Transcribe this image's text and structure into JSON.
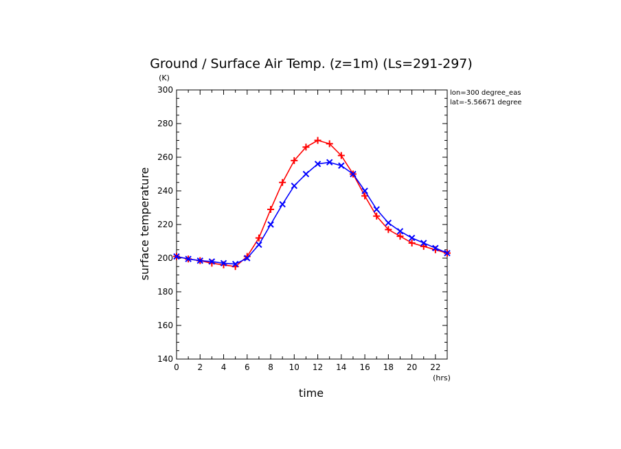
{
  "chart_data": {
    "type": "line",
    "title": "Ground / Surface Air Temp. (z=1m) (Ls=291-297)",
    "xlabel": "time",
    "ylabel": "surface temperature",
    "x_unit": "(hrs)",
    "y_unit": "(K)",
    "annotations": [
      "lon=300 degree_eas",
      "lat=-5.56671 degree"
    ],
    "xlim": [
      0,
      23
    ],
    "ylim": [
      140,
      300
    ],
    "x_ticks": [
      0,
      2,
      4,
      6,
      8,
      10,
      12,
      14,
      16,
      18,
      20,
      22
    ],
    "y_ticks": [
      140,
      160,
      180,
      200,
      220,
      240,
      260,
      280,
      300
    ],
    "x": [
      0,
      1,
      2,
      3,
      4,
      5,
      6,
      7,
      8,
      9,
      10,
      11,
      12,
      13,
      14,
      15,
      16,
      17,
      18,
      19,
      20,
      21,
      22,
      23
    ],
    "grid": false,
    "series": [
      {
        "color": "#ff0000",
        "marker": "plus",
        "values": [
          201,
          199.5,
          198.5,
          197,
          196,
          195,
          201,
          212,
          229,
          245,
          258,
          266,
          270,
          268,
          261,
          250,
          237,
          225,
          217,
          213,
          209,
          207,
          205,
          203
        ]
      },
      {
        "color": "#0000ff",
        "marker": "x",
        "values": [
          201,
          199.5,
          198.5,
          198,
          197,
          196.5,
          200,
          208,
          220,
          232,
          243,
          250,
          256,
          257,
          255,
          250,
          240,
          229,
          221,
          216,
          212,
          209,
          206,
          203
        ]
      }
    ]
  }
}
